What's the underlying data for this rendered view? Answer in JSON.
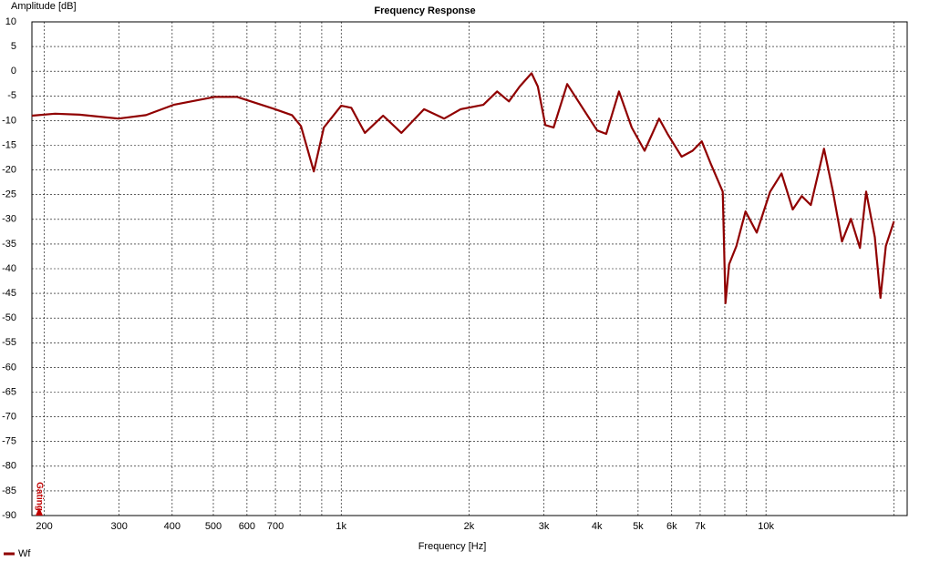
{
  "chart_data": {
    "type": "line",
    "title": "Frequency Response",
    "y_label": "Amplitude [dB]",
    "x_label": "Frequency [Hz]",
    "annotation": "Gating",
    "x_log": true,
    "grid": true,
    "legend_position": "bottom-left",
    "xlim": [
      187,
      21500
    ],
    "ylim": [
      -90,
      10
    ],
    "xticks": [
      200,
      300,
      400,
      500,
      600,
      700,
      {
        "value": 1000,
        "label": "1k"
      },
      {
        "value": 2000,
        "label": "2k"
      },
      {
        "value": 3000,
        "label": "3k"
      },
      {
        "value": 4000,
        "label": "4k"
      },
      {
        "value": 5000,
        "label": "5k"
      },
      {
        "value": 6000,
        "label": "6k"
      },
      {
        "value": 7000,
        "label": "7k"
      },
      {
        "value": 10000,
        "label": "10k"
      }
    ],
    "x_minor_grid": [
      800,
      900,
      8000,
      9000,
      20000
    ],
    "yticks": [
      10,
      5,
      0,
      -5,
      -10,
      -15,
      -20,
      -25,
      -30,
      -35,
      -40,
      -45,
      -50,
      -55,
      -60,
      -65,
      -70,
      -75,
      -80,
      -85,
      -90
    ],
    "x": [
      187,
      212,
      242,
      299,
      347,
      403,
      503,
      569,
      694,
      766,
      804,
      862,
      910,
      1000,
      1056,
      1137,
      1255,
      1386,
      1567,
      1748,
      1910,
      2161,
      2328,
      2482,
      2632,
      2806,
      2904,
      3024,
      3162,
      3404,
      3628,
      4004,
      4207,
      4508,
      4831,
      5178,
      5602,
      5884,
      6331,
      6717,
      7060,
      7420,
      7910,
      8030,
      8190,
      8520,
      8950,
      9510,
      10230,
      10880,
      11560,
      12140,
      12750,
      13700,
      14380,
      15100,
      15850,
      16640,
      17210,
      18040,
      18600,
      19150,
      20010
    ],
    "series": [
      {
        "name": "Wf",
        "color": "#900000",
        "values": [
          -9.0,
          -8.6,
          -8.8,
          -9.6,
          -8.9,
          -6.8,
          -5.2,
          -5.2,
          -7.6,
          -8.9,
          -11.1,
          -20.3,
          -11.4,
          -7.0,
          -7.4,
          -12.5,
          -9.0,
          -12.5,
          -7.7,
          -9.6,
          -7.7,
          -6.8,
          -4.1,
          -6.1,
          -3.1,
          -0.4,
          -3.1,
          -10.9,
          -11.4,
          -2.6,
          -6.3,
          -12.0,
          -12.7,
          -4.1,
          -11.4,
          -16.1,
          -9.6,
          -12.9,
          -17.3,
          -16.1,
          -14.2,
          -18.8,
          -24.4,
          -47.0,
          -39.1,
          -35.4,
          -28.4,
          -32.7,
          -24.4,
          -20.7,
          -28.0,
          -25.3,
          -27.1,
          -15.7,
          -24.4,
          -34.5,
          -29.9,
          -35.8,
          -24.4,
          -33.6,
          -45.9,
          -35.4,
          -30.4
        ]
      }
    ]
  }
}
